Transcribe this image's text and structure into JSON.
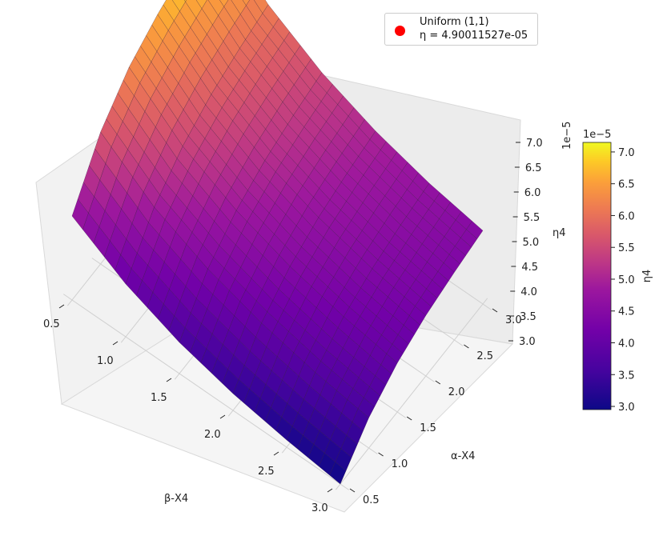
{
  "chart_data": {
    "type": "surface3d",
    "colormap": "plasma",
    "x_axis": {
      "label": "β-X4",
      "ticks": [
        "0.5",
        "1.0",
        "1.5",
        "2.0",
        "2.5",
        "3.0"
      ],
      "range": [
        0.5,
        3.0
      ]
    },
    "y_axis": {
      "label": "α-X4",
      "ticks": [
        "0.5",
        "1.0",
        "1.5",
        "2.0",
        "2.5",
        "3.0"
      ],
      "range": [
        0.5,
        3.0
      ]
    },
    "z_axis": {
      "label": "η4",
      "offset_text": "1e−5",
      "ticks": [
        "3.0",
        "3.5",
        "4.0",
        "4.5",
        "5.0",
        "5.5",
        "6.0",
        "6.5",
        "7.0"
      ],
      "range": [
        2.95,
        7.15
      ]
    },
    "surface": {
      "alpha_values": [
        0.5,
        1.0,
        1.5,
        2.0,
        2.5,
        3.0
      ],
      "beta_values": [
        0.5,
        1.0,
        1.5,
        2.0,
        2.5,
        3.0
      ],
      "eta4_e5_rows_by_alpha": [
        [
          4.7,
          4.05,
          3.6,
          3.3,
          3.1,
          2.95
        ],
        [
          5.7,
          4.9,
          4.38,
          4.02,
          3.76,
          3.58
        ],
        [
          6.3,
          5.42,
          4.85,
          4.45,
          4.17,
          3.97
        ],
        [
          6.65,
          5.75,
          5.14,
          4.72,
          4.42,
          4.21
        ],
        [
          6.9,
          5.96,
          5.33,
          4.89,
          4.58,
          4.36
        ],
        [
          7.1,
          6.12,
          5.47,
          5.02,
          4.7,
          4.48
        ]
      ]
    },
    "colorbar": {
      "label": "η4",
      "offset_text": "1e−5",
      "ticks": [
        "3.0",
        "3.5",
        "4.0",
        "4.5",
        "5.0",
        "5.5",
        "6.0",
        "6.5",
        "7.0"
      ],
      "range": [
        2.95,
        7.15
      ]
    },
    "legend": {
      "placement": "top-right",
      "entries": [
        {
          "marker_color": "#ff0000",
          "line1": "Uniform (1,1)",
          "line2": "η = 4.90011527e-05"
        }
      ]
    },
    "grid": true
  }
}
